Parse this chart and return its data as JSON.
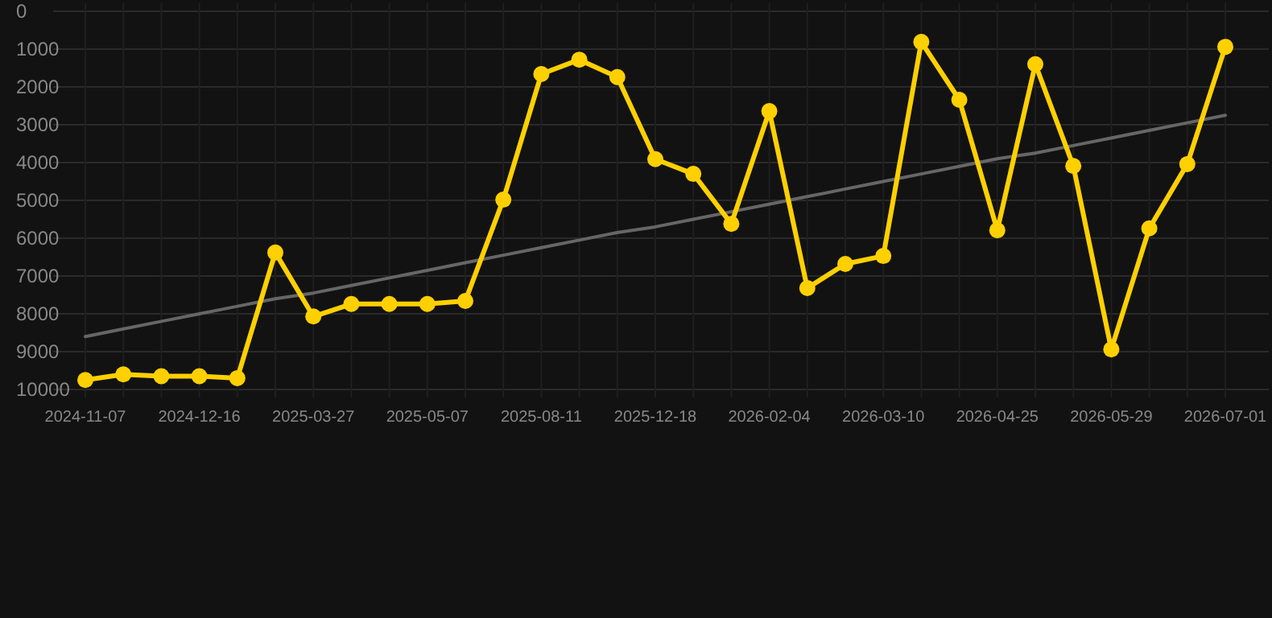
{
  "chart_data": {
    "type": "line",
    "categories": [
      "2024-11-07",
      null,
      null,
      "2024-12-16",
      null,
      null,
      "2025-03-27",
      null,
      null,
      "2025-05-07",
      null,
      null,
      "2025-08-11",
      null,
      null,
      "2025-12-18",
      null,
      null,
      "2026-02-04",
      null,
      null,
      "2026-03-10",
      null,
      null,
      "2026-04-25",
      null,
      null,
      "2026-05-29",
      null,
      null,
      "2026-07-01"
    ],
    "series": [
      {
        "color": "#ffd000",
        "marker": "circle",
        "values": [
          9750,
          9600,
          9650,
          9650,
          9700,
          6380,
          8070,
          7740,
          7740,
          7740,
          7660,
          4980,
          1660,
          1280,
          1740,
          3910,
          4300,
          5620,
          2640,
          7320,
          6680,
          6470,
          810,
          2340,
          5790,
          1400,
          4090,
          8940,
          5740,
          4040,
          940
        ]
      },
      {
        "color": "#666666",
        "marker": "none",
        "values": [
          8600,
          8400,
          8200,
          8000,
          7800,
          7600,
          7450,
          7250,
          7050,
          6850,
          6650,
          6450,
          6250,
          6050,
          5850,
          5700,
          5500,
          5300,
          5100,
          4900,
          4700,
          4500,
          4300,
          4100,
          3900,
          3750,
          3550,
          3350,
          3150,
          2950,
          2750
        ]
      }
    ],
    "ylim": [
      10000,
      0
    ],
    "yticks": [
      0,
      1000,
      2000,
      3000,
      4000,
      5000,
      6000,
      7000,
      8000,
      9000,
      10000
    ],
    "grid": true
  }
}
